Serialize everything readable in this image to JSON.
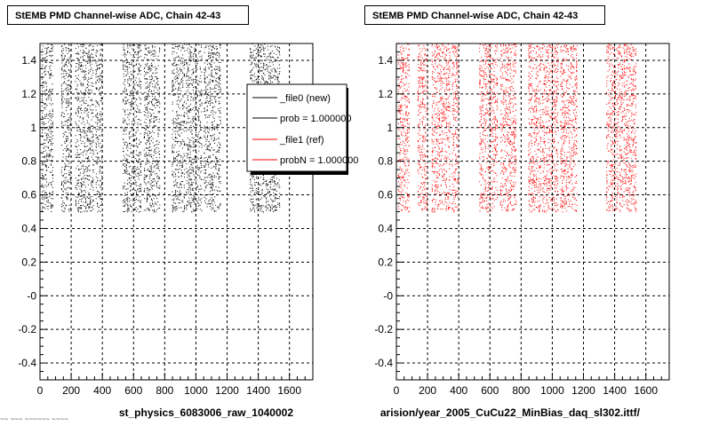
{
  "colors": {
    "new": "#000000",
    "ref": "#ff0000"
  },
  "chart_data": [
    {
      "type": "scatter",
      "title": "StEMB PMD Channel-wise ADC, Chain 42-43",
      "xlabel": "st_physics_6083006_raw_1040002",
      "ylabel": "",
      "xlim": [
        0,
        1750
      ],
      "ylim": [
        -0.5,
        1.5
      ],
      "grid": true,
      "x_ticks": [
        "0",
        "200",
        "400",
        "600",
        "800",
        "1000",
        "1200",
        "1400",
        "1600"
      ],
      "y_ticks": [
        "-0.4",
        "-0.2",
        "-0",
        "0.2",
        "0.4",
        "0.6",
        "0.8",
        "1",
        "1.2",
        "1.4"
      ],
      "legend_position": "top-right",
      "series": [
        {
          "name": "_file0 (new)",
          "color": "#000000",
          "y_range": [
            0.5,
            1.5
          ],
          "x_bands": [
            [
              10,
              85
            ],
            [
              135,
              200
            ],
            [
              225,
              345
            ],
            [
              355,
              400
            ],
            [
              530,
              650
            ],
            [
              665,
              770
            ],
            [
              845,
              930
            ],
            [
              935,
              1040
            ],
            [
              1050,
              1160
            ],
            [
              1345,
              1540
            ]
          ]
        },
        {
          "name": "_file1 (ref)",
          "color": "#ff0000",
          "y_range": [
            0.5,
            1.5
          ],
          "x_bands": []
        }
      ],
      "legend": [
        "_file0 (new)",
        "prob = 1.000000",
        "_file1 (ref)",
        "probN = 1.000000"
      ]
    },
    {
      "type": "scatter",
      "title": "StEMB PMD Channel-wise ADC, Chain 42-43",
      "xlabel": "arision/year_2005_CuCu22_MinBias_daq_sl302.ittf/",
      "ylabel": "",
      "xlim": [
        0,
        1750
      ],
      "ylim": [
        -0.5,
        1.5
      ],
      "grid": true,
      "x_ticks": [
        "0",
        "200",
        "400",
        "600",
        "800",
        "1000",
        "1200",
        "1400",
        "1600"
      ],
      "y_ticks": [
        "-0.4",
        "-0.2",
        "-0",
        "0.2",
        "0.4",
        "0.6",
        "0.8",
        "1",
        "1.2",
        "1.4"
      ],
      "series": [
        {
          "name": "_file1 (ref)",
          "color": "#ff0000",
          "y_range": [
            0.5,
            1.5
          ],
          "x_bands": [
            [
              10,
              85
            ],
            [
              135,
              200
            ],
            [
              225,
              345
            ],
            [
              355,
              400
            ],
            [
              530,
              650
            ],
            [
              665,
              770
            ],
            [
              845,
              930
            ],
            [
              935,
              1040
            ],
            [
              1050,
              1160
            ],
            [
              1345,
              1540
            ]
          ]
        }
      ]
    }
  ],
  "footer_text": "~~ ~~~ ~~~~~~ ~~~~"
}
